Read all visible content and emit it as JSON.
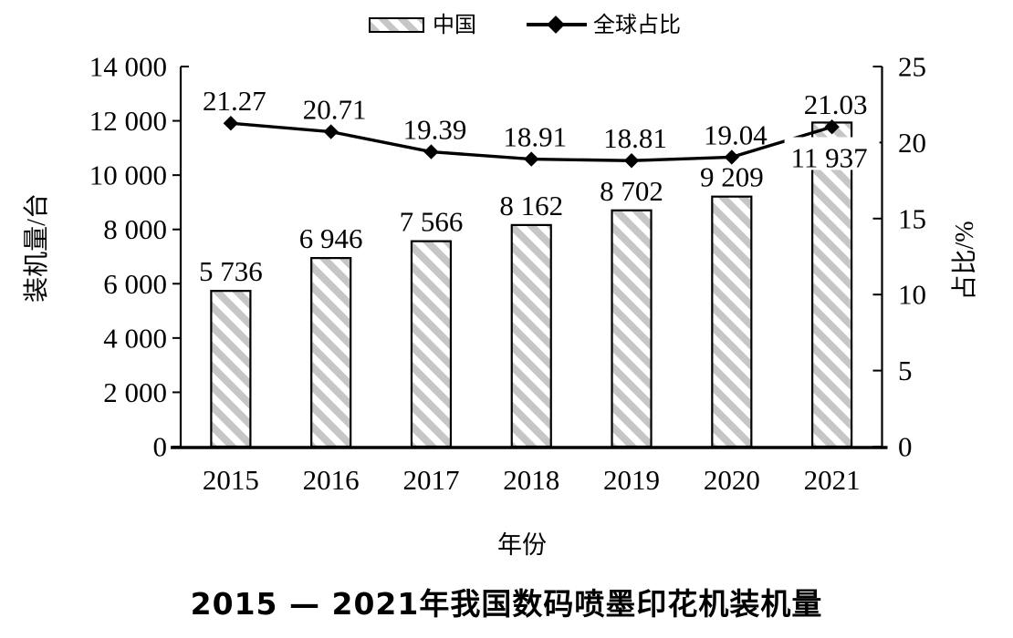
{
  "title": "2015 — 2021年我国数码喷墨印花机装机量",
  "legend": {
    "bar_label": "中国",
    "line_label": "全球占比"
  },
  "chart_data": {
    "type": "bar+line",
    "title": "2015 — 2021年我国数码喷墨印花机装机量",
    "xlabel": "年份",
    "categories": [
      "2015",
      "2016",
      "2017",
      "2018",
      "2019",
      "2020",
      "2021"
    ],
    "series": [
      {
        "name": "中国",
        "type": "bar",
        "axis": "left",
        "values": [
          5736,
          6946,
          7566,
          8162,
          8702,
          9209,
          11937
        ],
        "value_labels": [
          "5 736",
          "6 946",
          "7 566",
          "8 162",
          "8 702",
          "9 209",
          "11 937"
        ]
      },
      {
        "name": "全球占比",
        "type": "line",
        "axis": "right",
        "values": [
          21.27,
          20.71,
          19.39,
          18.91,
          18.81,
          19.04,
          21.03
        ],
        "value_labels": [
          "21.27",
          "20.71",
          "19.39",
          "18.91",
          "18.81",
          "19.04",
          "21.03"
        ]
      }
    ],
    "left_axis": {
      "title": "装机量/台",
      "min": 0,
      "max": 14000,
      "step": 2000,
      "tick_labels": [
        "0",
        "2 000",
        "4 000",
        "6 000",
        "8 000",
        "10 000",
        "12 000",
        "14 000"
      ]
    },
    "right_axis": {
      "title": "占比/%",
      "min": 0,
      "max": 25,
      "step": 5,
      "tick_labels": [
        "0",
        "5",
        "10",
        "15",
        "20",
        "25"
      ]
    },
    "grid": false,
    "legend_position": "top-center",
    "colors": {
      "bar_fill": "#ffffff",
      "bar_hatch": "#c6c6c6",
      "bar_border": "#000000",
      "line": "#000000",
      "marker": "#000000",
      "text": "#000000",
      "background": "#ffffff"
    }
  }
}
